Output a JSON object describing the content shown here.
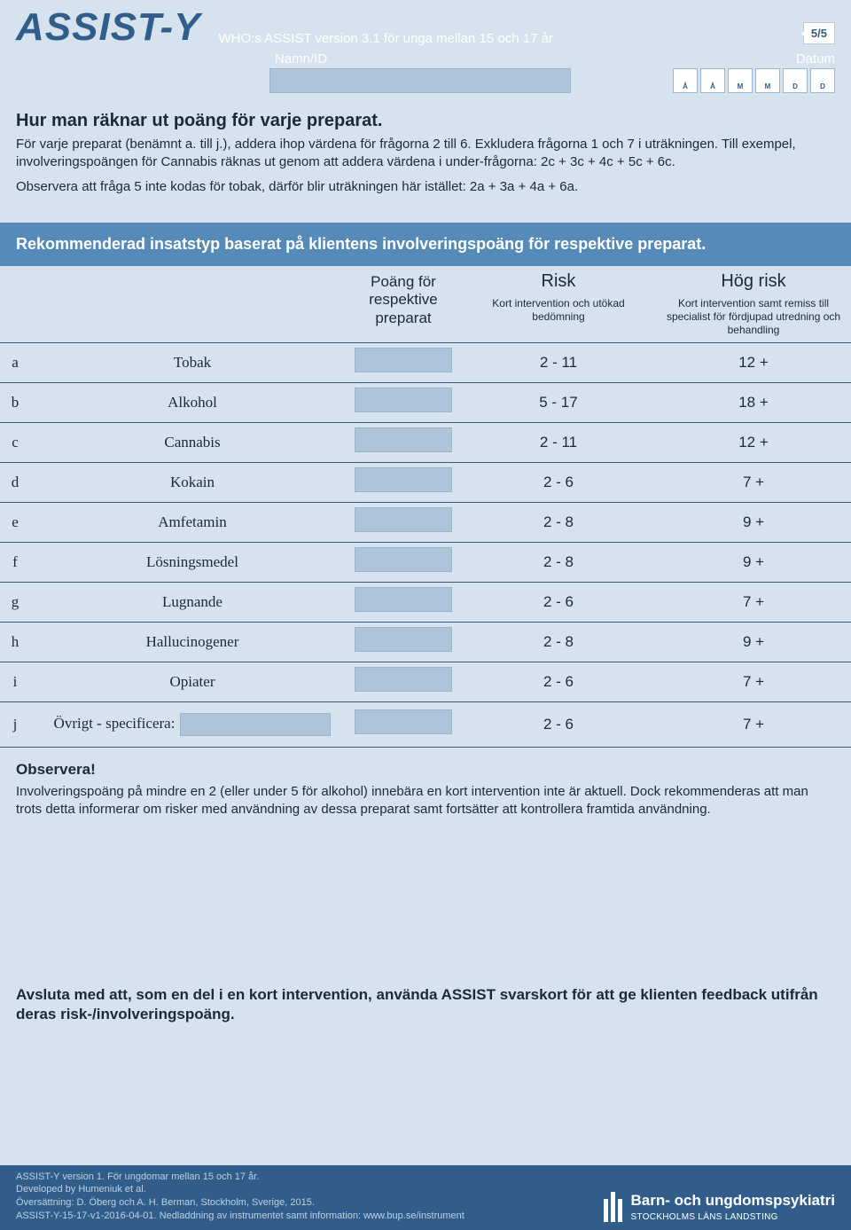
{
  "page_indicator": "5/5",
  "logo": "ASSIST-Y",
  "subtitle": "WHO:s ASSIST version 3.1 för unga mellan 15 och 17 år",
  "name_label": "Namn/ID",
  "date_label": "Datum",
  "date_letters": [
    "Å",
    "Å",
    "M",
    "M",
    "D",
    "D"
  ],
  "instr_title": "Hur man räknar ut poäng för varje preparat.",
  "instr_p1": "För varje preparat (benämnt a. till j.), addera ihop värdena för frågorna 2 till 6. Exkludera frågorna 1 och 7 i uträkningen. Till exempel, involveringspoängen för Cannabis räknas ut genom att addera värdena i under-frågorna: 2c + 3c + 4c + 5c + 6c.",
  "instr_p2": "Observera att fråga 5 inte kodas för tobak, därför blir uträkningen här istället: 2a + 3a + 4a + 6a.",
  "banner": "Rekommenderad insatstyp baserat på klientens involveringspoäng för respektive preparat.",
  "col_score": "Poäng för respektive preparat",
  "col_risk_title": "Risk",
  "col_risk_sub": "Kort intervention och utökad bedömning",
  "col_highrisk_title": "Hög risk",
  "col_highrisk_sub": "Kort intervention samt remiss till specialist för fördjupad utredning och behandling",
  "rows": [
    {
      "letter": "a",
      "name": "Tobak",
      "risk": "2 - 11",
      "high": "12 +"
    },
    {
      "letter": "b",
      "name": "Alkohol",
      "risk": "5 - 17",
      "high": "18 +"
    },
    {
      "letter": "c",
      "name": "Cannabis",
      "risk": "2 - 11",
      "high": "12 +"
    },
    {
      "letter": "d",
      "name": "Kokain",
      "risk": "2 - 6",
      "high": "7 +"
    },
    {
      "letter": "e",
      "name": "Amfetamin",
      "risk": "2 - 8",
      "high": "9 +"
    },
    {
      "letter": "f",
      "name": "Lösningsmedel",
      "risk": "2 - 8",
      "high": "9 +"
    },
    {
      "letter": "g",
      "name": "Lugnande",
      "risk": "2 - 6",
      "high": "7 +"
    },
    {
      "letter": "h",
      "name": "Hallucinogener",
      "risk": "2 - 8",
      "high": "9 +"
    },
    {
      "letter": "i",
      "name": "Opiater",
      "risk": "2 - 6",
      "high": "7 +"
    },
    {
      "letter": "j",
      "name": "Övrigt - specificera:",
      "risk": "2 - 6",
      "high": "7 +",
      "extra_input": true
    }
  ],
  "observe_title": "Observera!",
  "observe_text": "Involveringspoäng på mindre en 2 (eller under 5 för alkohol) innebära en kort intervention inte är aktuell. Dock rekommenderas att man trots detta informerar om risker med användning av dessa preparat samt fortsätter att kontrollera framtida användning.",
  "bottom_note": "Avsluta med att, som en del i en kort intervention, använda ASSIST svarskort för att ge klienten feedback utifrån deras risk-/involveringspoäng.",
  "footer_lines": [
    "ASSIST-Y version 1. För ungdomar mellan 15 och 17 år.",
    "Developed by Humeniuk et al.",
    "Översättning: D. Öberg och A. H. Berman, Stockholm, Sverige, 2015.",
    "ASSIST-Y-15-17-v1-2016-04-01. Nedladdning av instrumentet samt information: www.bup.se/instrument"
  ],
  "footer_brand_1": "Barn- och ungdomspsykiatri",
  "footer_brand_2": "STOCKHOLMS LÄNS LANDSTING"
}
